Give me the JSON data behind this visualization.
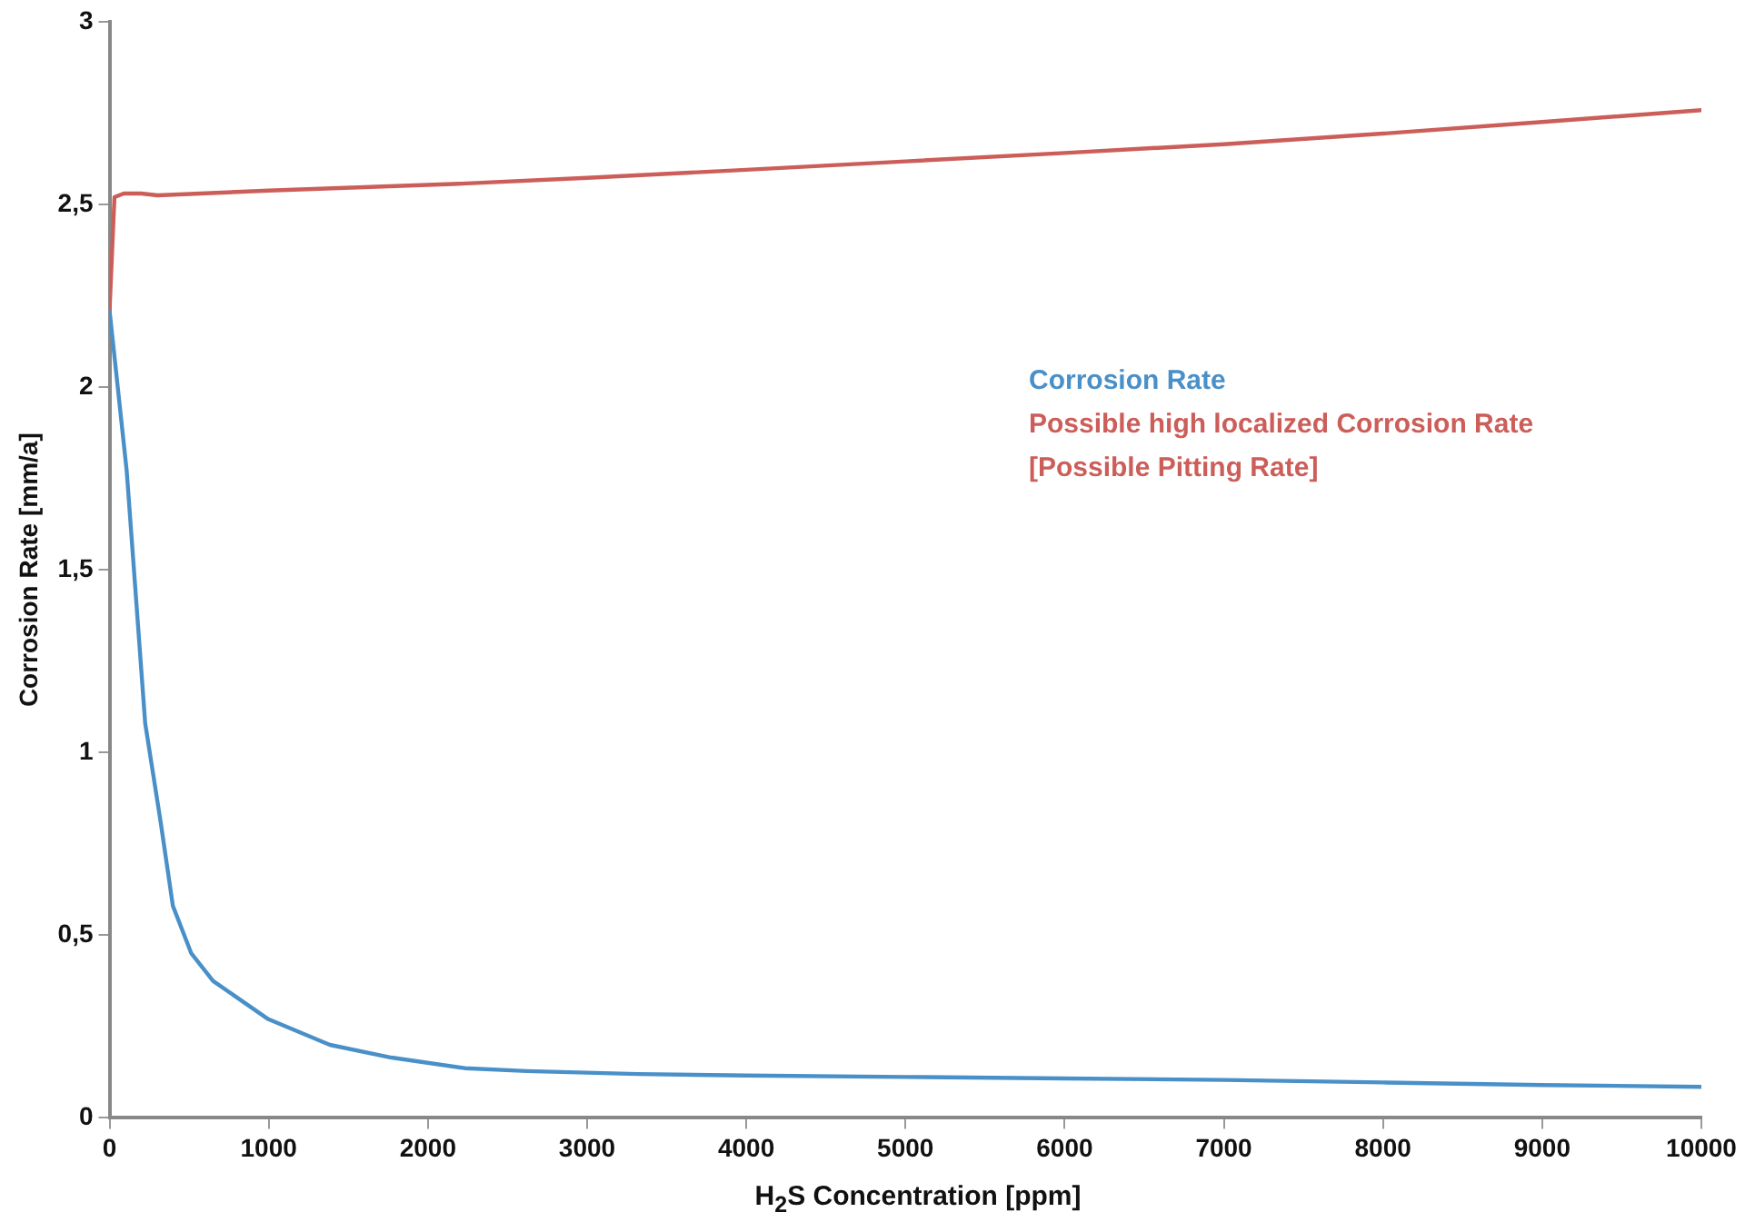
{
  "chart_data": {
    "type": "line",
    "xlabel": "H$_{2}$S Concentration [ppm]",
    "ylabel": "Corrosion Rate [mm/a]",
    "xlim": [
      0,
      10000
    ],
    "xticks": [
      0,
      1000,
      2000,
      3000,
      4000,
      5000,
      6000,
      7000,
      8000,
      9000,
      10000
    ],
    "ylim": [
      0,
      3
    ],
    "yticks": [
      0,
      {
        "value": 0.5,
        "label": "0,5"
      },
      1,
      {
        "value": 1.5,
        "label": "1,5"
      },
      2,
      {
        "value": 2.5,
        "label": "2,5"
      },
      3
    ],
    "grid": false,
    "legend": "right",
    "marker": "none",
    "line_style": "solid",
    "series": [
      {
        "name": "Corrosion Rate",
        "color": "#4a90c8",
        "x": [
          0,
          108,
          224,
          321,
          398,
          514,
          650,
          998,
          1384,
          1771,
          2235,
          2622,
          3318,
          4000,
          5000,
          6000,
          7000,
          8000,
          9000,
          10000
        ],
        "values": [
          2.21,
          1.77,
          1.08,
          0.81,
          0.58,
          0.45,
          0.375,
          0.27,
          0.2,
          0.165,
          0.136,
          0.128,
          0.12,
          0.116,
          0.112,
          0.108,
          0.104,
          0.097,
          0.09,
          0.085
        ]
      },
      {
        "name": "Possible high localized Corrosion Rate [Possible Pitting Rate]",
        "color": "#cc5e5a",
        "x": [
          0,
          31,
          89,
          200,
          302,
          1000,
          2158,
          3000,
          4000,
          5000,
          6000,
          7000,
          8000,
          9000,
          10000
        ],
        "values": [
          2.21,
          2.52,
          2.53,
          2.53,
          2.525,
          2.538,
          2.556,
          2.573,
          2.595,
          2.618,
          2.641,
          2.665,
          2.694,
          2.726,
          2.758
        ]
      }
    ]
  }
}
